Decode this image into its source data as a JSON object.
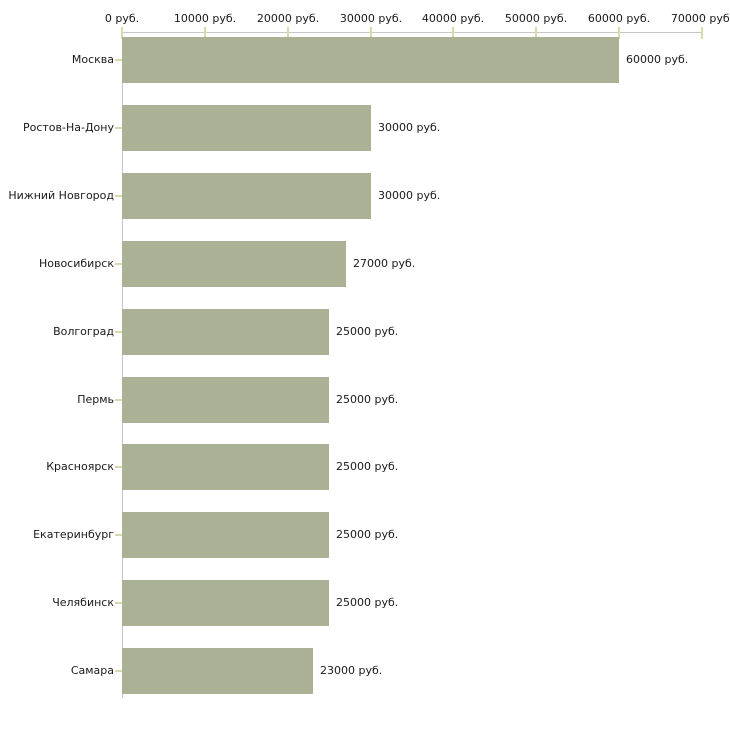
{
  "chart_data": {
    "type": "bar",
    "orientation": "horizontal",
    "title": "",
    "xlabel": "",
    "ylabel": "",
    "grid": false,
    "legend": false,
    "categories": [
      "Москва",
      "Ростов-На-Дону",
      "Нижний Новгород",
      "Новосибирск",
      "Волгоград",
      "Пермь",
      "Красноярск",
      "Екатеринбург",
      "Челябинск",
      "Самара"
    ],
    "values": [
      60000,
      30000,
      30000,
      27000,
      25000,
      25000,
      25000,
      25000,
      25000,
      23000
    ],
    "bar_labels": [
      "60000 руб.",
      "30000 руб.",
      "30000 руб.",
      "27000 руб.",
      "25000 руб.",
      "25000 руб.",
      "25000 руб.",
      "25000 руб.",
      "25000 руб.",
      "23000 руб."
    ],
    "x_axis": {
      "position": "top",
      "min": 0,
      "max": 70000,
      "tick_values": [
        0,
        10000,
        20000,
        30000,
        40000,
        50000,
        60000,
        70000
      ],
      "tick_labels": [
        "0 руб.",
        "10000 руб.",
        "20000 руб.",
        "30000 руб.",
        "40000 руб.",
        "50000 руб.",
        "60000 руб.",
        "70000 руб."
      ]
    },
    "colors": {
      "bar": "#aab194",
      "axis": "#c6c6c6",
      "tick": "#d9d9ae",
      "text": "#1a1a1a",
      "background": "#ffffff"
    }
  }
}
